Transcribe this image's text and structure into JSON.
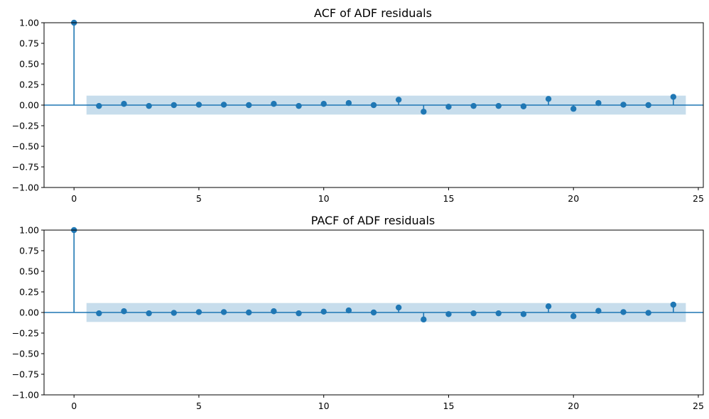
{
  "chart_data": [
    {
      "type": "stem",
      "title": "ACF of ADF residuals",
      "xlabel": "",
      "ylabel": "",
      "xlim": [
        -1.2,
        25.2
      ],
      "ylim": [
        -1.0,
        1.0
      ],
      "xticks": [
        0,
        5,
        10,
        15,
        20,
        25
      ],
      "yticks": [
        1.0,
        0.75,
        0.5,
        0.25,
        0.0,
        -0.25,
        -0.5,
        -0.75,
        -1.0
      ],
      "xtick_labels": [
        "0",
        "5",
        "10",
        "15",
        "20",
        "25"
      ],
      "ytick_labels": [
        "1.00",
        "0.75",
        "0.50",
        "0.25",
        "0.00",
        "−0.25",
        "−0.50",
        "−0.75",
        "−1.00"
      ],
      "lags": [
        0,
        1,
        2,
        3,
        4,
        5,
        6,
        7,
        8,
        9,
        10,
        11,
        12,
        13,
        14,
        15,
        16,
        17,
        18,
        19,
        20,
        21,
        22,
        23,
        24
      ],
      "values": [
        1.0,
        -0.01,
        0.015,
        -0.01,
        0.0,
        0.005,
        0.005,
        0.0,
        0.015,
        -0.01,
        0.015,
        0.025,
        0.0,
        0.065,
        -0.08,
        -0.02,
        -0.01,
        -0.01,
        -0.015,
        0.075,
        -0.045,
        0.025,
        0.005,
        0.0,
        0.1
      ],
      "confidence_band": [
        0.115,
        0.115
      ],
      "confidence_range": [
        0.5,
        24.5
      ],
      "colors": {
        "stem": "#1f77b4",
        "band": "#1f77b4",
        "band_opacity": 0.25
      },
      "grid": false
    },
    {
      "type": "stem",
      "title": "PACF of ADF residuals",
      "xlabel": "",
      "ylabel": "",
      "xlim": [
        -1.2,
        25.2
      ],
      "ylim": [
        -1.0,
        1.0
      ],
      "xticks": [
        0,
        5,
        10,
        15,
        20,
        25
      ],
      "yticks": [
        1.0,
        0.75,
        0.5,
        0.25,
        0.0,
        -0.25,
        -0.5,
        -0.75,
        -1.0
      ],
      "xtick_labels": [
        "0",
        "5",
        "10",
        "15",
        "20",
        "25"
      ],
      "ytick_labels": [
        "1.00",
        "0.75",
        "0.50",
        "0.25",
        "0.00",
        "−0.25",
        "−0.50",
        "−0.75",
        "−1.00"
      ],
      "lags": [
        0,
        1,
        2,
        3,
        4,
        5,
        6,
        7,
        8,
        9,
        10,
        11,
        12,
        13,
        14,
        15,
        16,
        17,
        18,
        19,
        20,
        21,
        22,
        23,
        24
      ],
      "values": [
        1.0,
        -0.01,
        0.015,
        -0.01,
        -0.005,
        0.005,
        0.005,
        0.0,
        0.015,
        -0.01,
        0.01,
        0.025,
        0.0,
        0.06,
        -0.085,
        -0.02,
        -0.01,
        -0.01,
        -0.02,
        0.075,
        -0.045,
        0.02,
        0.005,
        -0.005,
        0.095
      ],
      "confidence_band": [
        0.115,
        0.115
      ],
      "confidence_range": [
        0.5,
        24.5
      ],
      "colors": {
        "stem": "#1f77b4",
        "band": "#1f77b4",
        "band_opacity": 0.25
      },
      "grid": false
    }
  ]
}
